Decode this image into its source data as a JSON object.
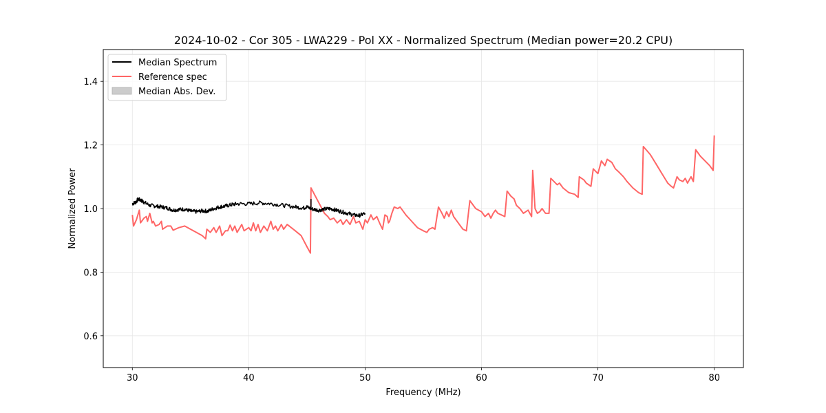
{
  "chart_data": {
    "type": "line",
    "title": "2024-10-02 - Cor 305 - LWA229 - Pol XX - Normalized Spectrum (Median power=20.2 CPU)",
    "xlabel": "Frequency (MHz)",
    "ylabel": "Normalized Power",
    "xlim": [
      27.5,
      82.5
    ],
    "ylim": [
      0.5,
      1.5
    ],
    "xticks": [
      30,
      40,
      50,
      60,
      70,
      80
    ],
    "xtick_labels": [
      "30",
      "40",
      "50",
      "60",
      "70",
      "80"
    ],
    "yticks": [
      0.6,
      0.8,
      1.0,
      1.2,
      1.4
    ],
    "ytick_labels": [
      "0.6",
      "0.8",
      "1.0",
      "1.2",
      "1.4"
    ],
    "grid": true,
    "legend": {
      "placement": "top-left",
      "entries": [
        {
          "label": "Median Spectrum",
          "kind": "line",
          "color": "#000000"
        },
        {
          "label": "Reference spec",
          "kind": "line",
          "color": "#ff6666"
        },
        {
          "label": "Median Abs. Dev.",
          "kind": "patch",
          "color": "#cccccc"
        }
      ]
    },
    "series": [
      {
        "name": "Median Spectrum",
        "color": "#000000",
        "noisy": true,
        "points": [
          [
            30.0,
            1.015
          ],
          [
            30.3,
            1.02
          ],
          [
            30.5,
            1.03
          ],
          [
            30.8,
            1.025
          ],
          [
            31.0,
            1.02
          ],
          [
            31.5,
            1.01
          ],
          [
            32.0,
            1.008
          ],
          [
            32.5,
            1.005
          ],
          [
            33.0,
            1.002
          ],
          [
            33.5,
            0.995
          ],
          [
            34.0,
            0.997
          ],
          [
            34.5,
            0.998
          ],
          [
            35.0,
            0.992
          ],
          [
            35.5,
            0.99
          ],
          [
            36.0,
            0.993
          ],
          [
            36.5,
            0.992
          ],
          [
            37.0,
            1.0
          ],
          [
            37.5,
            1.005
          ],
          [
            38.0,
            1.008
          ],
          [
            38.5,
            1.012
          ],
          [
            39.0,
            1.015
          ],
          [
            40.0,
            1.015
          ],
          [
            41.0,
            1.018
          ],
          [
            42.0,
            1.015
          ],
          [
            43.0,
            1.01
          ],
          [
            44.0,
            1.005
          ],
          [
            44.7,
            1.002
          ],
          [
            45.0,
            1.005
          ],
          [
            45.5,
            0.998
          ],
          [
            46.0,
            0.995
          ],
          [
            46.5,
            0.998
          ],
          [
            47.0,
            1.0
          ],
          [
            47.5,
            0.995
          ],
          [
            48.0,
            0.99
          ],
          [
            48.5,
            0.985
          ],
          [
            49.0,
            0.98
          ],
          [
            49.5,
            0.978
          ],
          [
            50.0,
            0.985
          ]
        ]
      },
      {
        "name": "Reference spec",
        "color": "#ff6666",
        "noisy": false,
        "points": [
          [
            30.0,
            0.98
          ],
          [
            30.1,
            0.945
          ],
          [
            30.35,
            0.965
          ],
          [
            30.6,
            0.995
          ],
          [
            30.7,
            0.955
          ],
          [
            31.0,
            0.97
          ],
          [
            31.2,
            0.975
          ],
          [
            31.3,
            0.96
          ],
          [
            31.5,
            0.985
          ],
          [
            31.7,
            0.955
          ],
          [
            31.8,
            0.96
          ],
          [
            32.0,
            0.945
          ],
          [
            32.3,
            0.95
          ],
          [
            32.5,
            0.96
          ],
          [
            32.6,
            0.935
          ],
          [
            33.0,
            0.945
          ],
          [
            33.3,
            0.945
          ],
          [
            33.5,
            0.932
          ],
          [
            34.0,
            0.94
          ],
          [
            34.5,
            0.945
          ],
          [
            35.0,
            0.935
          ],
          [
            35.5,
            0.925
          ],
          [
            36.0,
            0.915
          ],
          [
            36.3,
            0.905
          ],
          [
            36.4,
            0.935
          ],
          [
            36.7,
            0.925
          ],
          [
            37.0,
            0.94
          ],
          [
            37.2,
            0.925
          ],
          [
            37.5,
            0.945
          ],
          [
            37.7,
            0.915
          ],
          [
            38.0,
            0.93
          ],
          [
            38.2,
            0.93
          ],
          [
            38.4,
            0.948
          ],
          [
            38.6,
            0.93
          ],
          [
            38.8,
            0.945
          ],
          [
            39.0,
            0.925
          ],
          [
            39.4,
            0.95
          ],
          [
            39.6,
            0.93
          ],
          [
            40.0,
            0.94
          ],
          [
            40.2,
            0.93
          ],
          [
            40.4,
            0.955
          ],
          [
            40.6,
            0.93
          ],
          [
            40.8,
            0.95
          ],
          [
            41.0,
            0.925
          ],
          [
            41.3,
            0.945
          ],
          [
            41.6,
            0.93
          ],
          [
            41.9,
            0.96
          ],
          [
            42.1,
            0.935
          ],
          [
            42.3,
            0.945
          ],
          [
            42.5,
            0.93
          ],
          [
            42.8,
            0.95
          ],
          [
            43.0,
            0.935
          ],
          [
            43.3,
            0.95
          ],
          [
            44.0,
            0.93
          ],
          [
            44.5,
            0.915
          ],
          [
            45.0,
            0.88
          ],
          [
            45.3,
            0.86
          ],
          [
            45.35,
            1.065
          ],
          [
            46.0,
            1.02
          ],
          [
            46.5,
            0.985
          ],
          [
            46.8,
            0.975
          ],
          [
            47.0,
            0.965
          ],
          [
            47.3,
            0.97
          ],
          [
            47.6,
            0.955
          ],
          [
            47.9,
            0.965
          ],
          [
            48.1,
            0.95
          ],
          [
            48.4,
            0.965
          ],
          [
            48.7,
            0.95
          ],
          [
            49.0,
            0.975
          ],
          [
            49.2,
            0.955
          ],
          [
            49.5,
            0.96
          ],
          [
            49.8,
            0.935
          ],
          [
            50.0,
            0.965
          ],
          [
            50.2,
            0.955
          ],
          [
            50.5,
            0.98
          ],
          [
            50.7,
            0.965
          ],
          [
            51.0,
            0.975
          ],
          [
            51.3,
            0.95
          ],
          [
            51.5,
            0.935
          ],
          [
            51.7,
            0.98
          ],
          [
            51.9,
            0.975
          ],
          [
            52.0,
            0.955
          ],
          [
            52.1,
            0.96
          ],
          [
            52.3,
            0.985
          ],
          [
            52.5,
            1.005
          ],
          [
            52.8,
            1.0
          ],
          [
            53.0,
            1.005
          ],
          [
            53.2,
            0.995
          ],
          [
            53.5,
            0.98
          ],
          [
            54.0,
            0.96
          ],
          [
            54.5,
            0.94
          ],
          [
            55.0,
            0.93
          ],
          [
            55.3,
            0.925
          ],
          [
            55.5,
            0.935
          ],
          [
            55.8,
            0.94
          ],
          [
            56.0,
            0.935
          ],
          [
            56.3,
            1.005
          ],
          [
            56.6,
            0.985
          ],
          [
            56.8,
            0.97
          ],
          [
            57.0,
            0.99
          ],
          [
            57.2,
            0.975
          ],
          [
            57.4,
            0.995
          ],
          [
            57.6,
            0.975
          ],
          [
            58.0,
            0.955
          ],
          [
            58.4,
            0.935
          ],
          [
            58.7,
            0.93
          ],
          [
            59.0,
            1.025
          ],
          [
            59.5,
            1.0
          ],
          [
            60.0,
            0.99
          ],
          [
            60.3,
            0.975
          ],
          [
            60.6,
            0.985
          ],
          [
            60.8,
            0.97
          ],
          [
            61.0,
            0.985
          ],
          [
            61.2,
            0.995
          ],
          [
            61.4,
            0.985
          ],
          [
            61.7,
            0.98
          ],
          [
            62.0,
            0.975
          ],
          [
            62.2,
            1.055
          ],
          [
            62.5,
            1.04
          ],
          [
            62.8,
            1.03
          ],
          [
            63.0,
            1.01
          ],
          [
            63.3,
            1.0
          ],
          [
            63.6,
            0.985
          ],
          [
            64.0,
            0.995
          ],
          [
            64.3,
            0.975
          ],
          [
            64.4,
            1.12
          ],
          [
            64.6,
            1.0
          ],
          [
            64.8,
            0.985
          ],
          [
            65.0,
            0.99
          ],
          [
            65.2,
            1.0
          ],
          [
            65.5,
            0.985
          ],
          [
            65.8,
            0.985
          ],
          [
            65.95,
            1.095
          ],
          [
            66.5,
            1.075
          ],
          [
            66.7,
            1.08
          ],
          [
            67.0,
            1.065
          ],
          [
            67.5,
            1.05
          ],
          [
            68.0,
            1.045
          ],
          [
            68.3,
            1.035
          ],
          [
            68.4,
            1.1
          ],
          [
            68.8,
            1.09
          ],
          [
            69.0,
            1.08
          ],
          [
            69.4,
            1.07
          ],
          [
            69.6,
            1.125
          ],
          [
            70.0,
            1.11
          ],
          [
            70.3,
            1.15
          ],
          [
            70.6,
            1.135
          ],
          [
            70.8,
            1.155
          ],
          [
            71.2,
            1.145
          ],
          [
            71.5,
            1.125
          ],
          [
            71.8,
            1.115
          ],
          [
            72.2,
            1.1
          ],
          [
            72.5,
            1.085
          ],
          [
            73.0,
            1.065
          ],
          [
            73.5,
            1.05
          ],
          [
            73.8,
            1.045
          ],
          [
            73.9,
            1.195
          ],
          [
            74.5,
            1.17
          ],
          [
            75.0,
            1.14
          ],
          [
            75.5,
            1.11
          ],
          [
            76.0,
            1.08
          ],
          [
            76.3,
            1.07
          ],
          [
            76.5,
            1.065
          ],
          [
            76.8,
            1.1
          ],
          [
            77.0,
            1.09
          ],
          [
            77.3,
            1.085
          ],
          [
            77.5,
            1.095
          ],
          [
            77.7,
            1.08
          ],
          [
            78.0,
            1.1
          ],
          [
            78.2,
            1.085
          ],
          [
            78.4,
            1.185
          ],
          [
            78.8,
            1.165
          ],
          [
            79.2,
            1.15
          ],
          [
            79.6,
            1.135
          ],
          [
            79.9,
            1.12
          ],
          [
            80.0,
            1.23
          ]
        ]
      }
    ]
  }
}
